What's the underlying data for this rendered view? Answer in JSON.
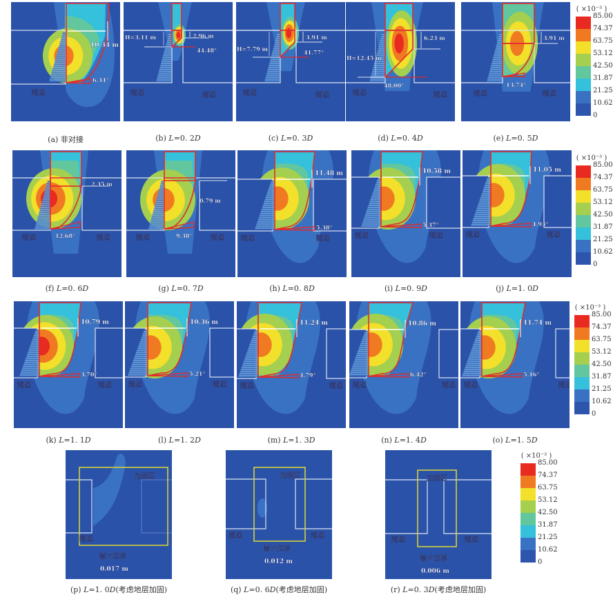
{
  "colors": {
    "background": "#2a52a8",
    "levels": [
      "#2d55ad",
      "#3a72c3",
      "#35c0dc",
      "#62c79e",
      "#a5cf4e",
      "#f2e02a",
      "#f07a22",
      "#e82a20"
    ],
    "outline": "#e02a2a",
    "boundary": "#dde6f5",
    "reinforce": "#d8d23a"
  },
  "legend": {
    "unit": "( ×10⁻³ )",
    "ticks": [
      "85.00",
      "74.37",
      "63.75",
      "53.12",
      "42.50",
      "31.87",
      "21.25",
      "10.62",
      "0"
    ]
  },
  "tunnel_label": "隧道",
  "panels": [
    {
      "id": "a",
      "label": "(a)",
      "caption": "非对接",
      "width": "10.34 m",
      "angle": "6.34°",
      "twin": false
    },
    {
      "id": "b",
      "label": "(b)",
      "caption_l": "L",
      "caption_rest": "=0. 2",
      "caption_d": "D",
      "H": "H=3.11 m",
      "offset": "2.96 m",
      "angle": "44.48°"
    },
    {
      "id": "c",
      "label": "(c)",
      "caption_l": "L",
      "caption_rest": "=0. 3",
      "caption_d": "D",
      "H": "H=7.79 m",
      "offset": "3.91 m",
      "angle": "41.77°"
    },
    {
      "id": "d",
      "label": "(d)",
      "caption_l": "L",
      "caption_rest": "=0. 4",
      "caption_d": "D",
      "H": "H=12.45 m",
      "offset": "6.23 m",
      "angle": "48.00°"
    },
    {
      "id": "e",
      "label": "(e)",
      "caption_l": "L",
      "caption_rest": "=0. 5",
      "caption_d": "D",
      "offset": "3.91 m",
      "angle": "13.74°"
    },
    {
      "id": "f",
      "label": "(f)",
      "caption_l": "L",
      "caption_rest": "=0. 6",
      "caption_d": "D",
      "offset": "2.35 m",
      "angle": "12.68°"
    },
    {
      "id": "g",
      "label": "(g)",
      "caption_l": "L",
      "caption_rest": "=0. 7",
      "caption_d": "D",
      "offset": "0.79 m",
      "angle": "9.38°"
    },
    {
      "id": "h",
      "label": "(h)",
      "caption_l": "L",
      "caption_rest": "=0. 8",
      "caption_d": "D",
      "width": "11.48 m",
      "angle": "5.38°"
    },
    {
      "id": "i",
      "label": "(i)",
      "caption_l": "L",
      "caption_rest": "=0. 9",
      "caption_d": "D",
      "width": "10.58 m",
      "angle": "5.37°"
    },
    {
      "id": "j",
      "label": "(j)",
      "caption_l": "L",
      "caption_rest": "=1. 0",
      "caption_d": "D",
      "width": "11.05 m",
      "angle": "4.93°"
    },
    {
      "id": "k",
      "label": "(k)",
      "caption_l": "L",
      "caption_rest": "=1. 1",
      "caption_d": "D",
      "width": "10.79 m",
      "angle": "3.70°"
    },
    {
      "id": "l",
      "label": "(l)",
      "caption_l": "L",
      "caption_rest": "=1. 2",
      "caption_d": "D",
      "width": "10.36 m",
      "angle": "5.21°"
    },
    {
      "id": "m",
      "label": "(m)",
      "caption_l": "L",
      "caption_rest": "=1. 3",
      "caption_d": "D",
      "width": "11.24 m",
      "angle": "4.79°"
    },
    {
      "id": "n",
      "label": "(n)",
      "caption_l": "L",
      "caption_rest": "=1. 4",
      "caption_d": "D",
      "width": "10.86 m",
      "angle": "6.42°"
    },
    {
      "id": "o",
      "label": "(o)",
      "caption_l": "L",
      "caption_rest": "=1. 5",
      "caption_d": "D",
      "width": "11.74 m",
      "angle": "5.16°"
    }
  ],
  "reinforced": [
    {
      "id": "p",
      "label": "(p)",
      "caption_l": "L",
      "caption_rest": "=1. 0",
      "caption_d": "D",
      "caption_tail": "(考虑地层加固)",
      "zone": "加固区",
      "max_label": "最大位移",
      "max_value": "0.017 m"
    },
    {
      "id": "q",
      "label": "(q)",
      "caption_l": "L",
      "caption_rest": "=0. 6",
      "caption_d": "D",
      "caption_tail": "(考虑地层加固)",
      "zone": "加固区",
      "max_label": "最大位移",
      "max_value": "0.012 m"
    },
    {
      "id": "r",
      "label": "(r)",
      "caption_l": "L",
      "caption_rest": "=0. 3",
      "caption_d": "D",
      "caption_tail": "(考虑地层加固)",
      "zone": "加固区",
      "max_label": "最大位移",
      "max_value": "0.006 m"
    }
  ]
}
